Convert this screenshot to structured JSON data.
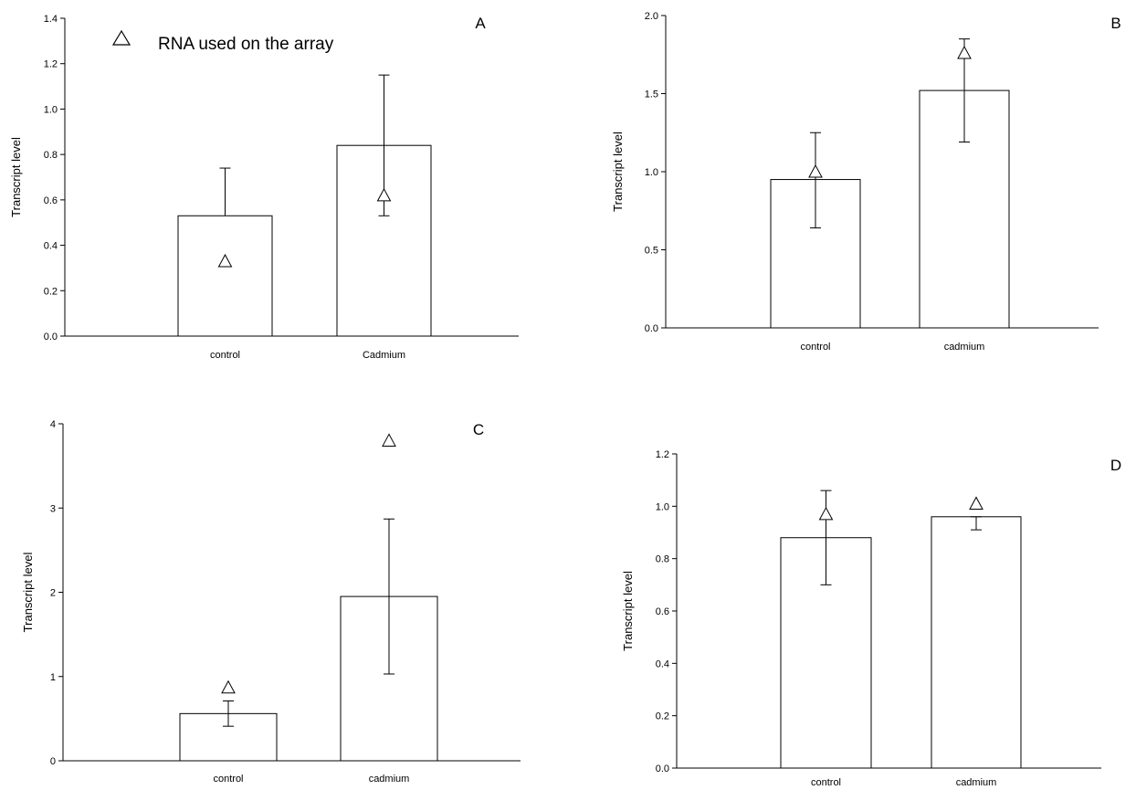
{
  "legend": {
    "marker_icon": "triangle-icon",
    "label": "RNA used on the array"
  },
  "chart_data": [
    {
      "type": "bar",
      "panel": "A",
      "categories": [
        "control",
        "Cadmium"
      ],
      "values": [
        0.53,
        0.84
      ],
      "errors": [
        [
          0.53,
          0.74
        ],
        [
          0.53,
          1.15
        ]
      ],
      "array_values": [
        0.33,
        0.62
      ],
      "ylabel": "Transcript level",
      "ylim": [
        0,
        1.4
      ],
      "yticks": [
        "0.0",
        "0.2",
        "0.4",
        "0.6",
        "0.8",
        "1.0",
        "1.2",
        "1.4"
      ]
    },
    {
      "type": "bar",
      "panel": "B",
      "categories": [
        "control",
        "cadmium"
      ],
      "values": [
        0.95,
        1.52
      ],
      "errors": [
        [
          0.64,
          1.25
        ],
        [
          1.19,
          1.85
        ]
      ],
      "array_values": [
        1.0,
        1.76
      ],
      "ylabel": "Transcript level",
      "ylim": [
        0,
        2.0
      ],
      "yticks": [
        "0.0",
        "0.5",
        "1.0",
        "1.5",
        "2.0"
      ]
    },
    {
      "type": "bar",
      "panel": "C",
      "categories": [
        "control",
        "cadmium"
      ],
      "values": [
        0.56,
        1.95
      ],
      "errors": [
        [
          0.41,
          0.71
        ],
        [
          1.03,
          2.87
        ]
      ],
      "array_values": [
        0.87,
        3.8
      ],
      "ylabel": "Transcript level",
      "ylim": [
        0,
        4
      ],
      "yticks": [
        "0",
        "1",
        "2",
        "3",
        "4"
      ]
    },
    {
      "type": "bar",
      "panel": "D",
      "categories": [
        "control",
        "cadmium"
      ],
      "values": [
        0.88,
        0.96
      ],
      "errors": [
        [
          0.7,
          1.06
        ],
        [
          0.91,
          0.96
        ]
      ],
      "array_values": [
        0.97,
        1.01
      ],
      "ylabel": "Transcript level",
      "ylim": [
        0,
        1.2
      ],
      "yticks": [
        "0.0",
        "0.2",
        "0.4",
        "0.6",
        "0.8",
        "1.0",
        "1.2"
      ]
    }
  ]
}
